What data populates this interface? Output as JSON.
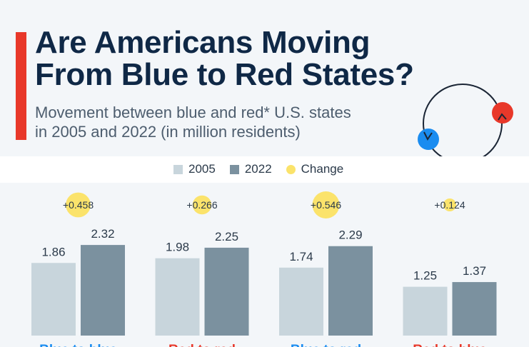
{
  "header": {
    "title_line1": "Are Americans Moving",
    "title_line2": "From Blue to Red States?",
    "subtitle_line1": "Movement between blue and red* U.S. states",
    "subtitle_line2": "in 2005 and 2022 (in million residents)"
  },
  "legend": [
    {
      "label": "2005",
      "color": "#c8d5dc"
    },
    {
      "label": "2022",
      "color": "#7b919f"
    },
    {
      "label": "Change",
      "color": "#fbe36b"
    }
  ],
  "colors": {
    "accent": "#e8382a",
    "blue": "#1a8cf0",
    "red": "#e8382a",
    "title": "#0f2846"
  },
  "chart_data": {
    "type": "bar",
    "categories": [
      "Blue to blue",
      "Red to red",
      "Blue to red",
      "Red to blue"
    ],
    "category_colors": [
      "#1a8cf0",
      "#e8382a",
      "#1a8cf0",
      "#e8382a"
    ],
    "series": [
      {
        "name": "2005",
        "values": [
          1.86,
          1.98,
          1.74,
          1.25
        ]
      },
      {
        "name": "2022",
        "values": [
          2.32,
          2.25,
          2.29,
          1.37
        ]
      },
      {
        "name": "Change",
        "values": [
          0.458,
          0.266,
          0.546,
          0.124
        ]
      }
    ],
    "change_labels": [
      "+0.458",
      "+0.266",
      "+0.546",
      "+0.124"
    ],
    "ylim": [
      0,
      2.5
    ],
    "grid": false,
    "legend_position": "top-center"
  }
}
